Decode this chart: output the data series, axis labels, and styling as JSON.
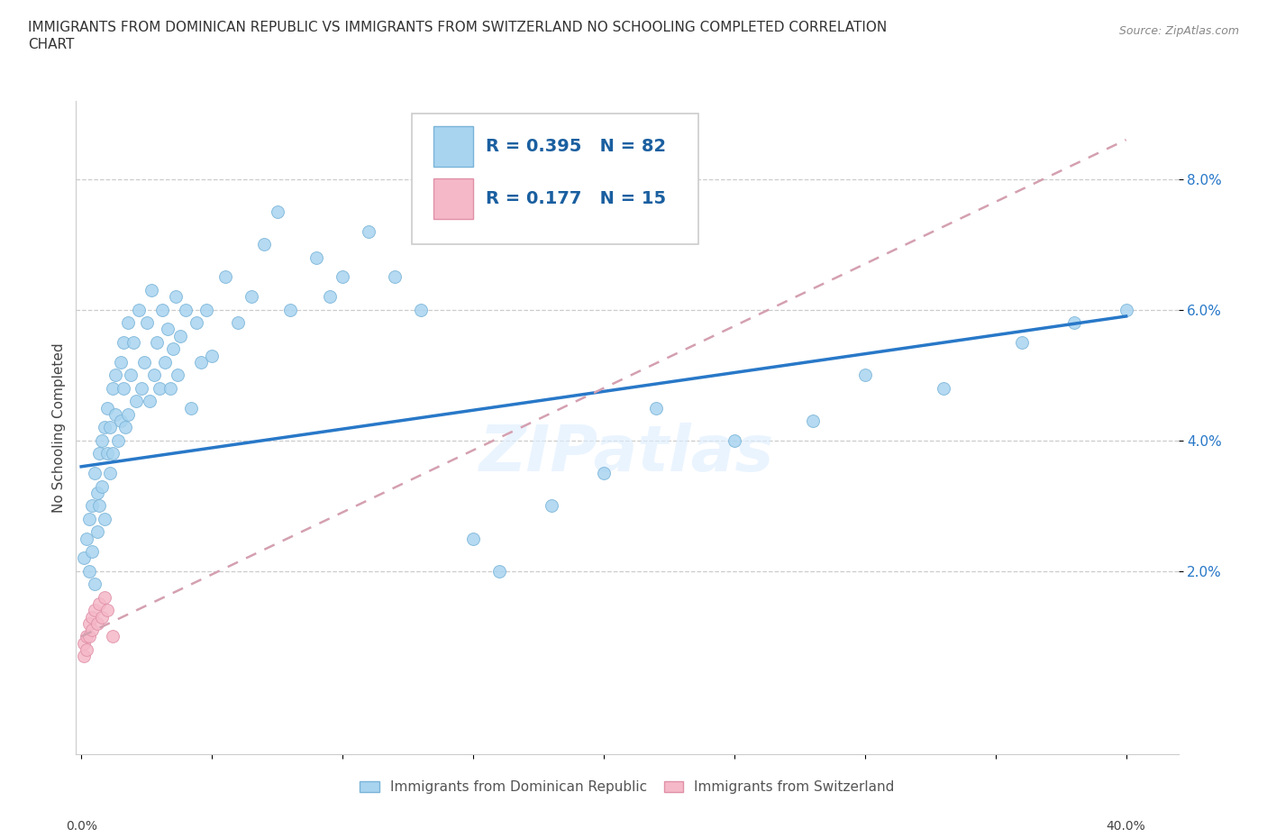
{
  "title_line1": "IMMIGRANTS FROM DOMINICAN REPUBLIC VS IMMIGRANTS FROM SWITZERLAND NO SCHOOLING COMPLETED CORRELATION",
  "title_line2": "CHART",
  "source": "Source: ZipAtlas.com",
  "ylabel": "No Schooling Completed",
  "yticks": [
    "2.0%",
    "4.0%",
    "6.0%",
    "8.0%"
  ],
  "ytick_vals": [
    0.02,
    0.04,
    0.06,
    0.08
  ],
  "xlim": [
    -0.002,
    0.42
  ],
  "ylim": [
    -0.008,
    0.092
  ],
  "legend_blue_R": "0.395",
  "legend_blue_N": "82",
  "legend_pink_R": "0.177",
  "legend_pink_N": "15",
  "legend_label_blue": "Immigrants from Dominican Republic",
  "legend_label_pink": "Immigrants from Switzerland",
  "blue_color": "#a8d4f0",
  "blue_edge": "#7ab4d8",
  "pink_color": "#f5b8c8",
  "pink_edge": "#e090a8",
  "blue_scatter_x": [
    0.001,
    0.002,
    0.003,
    0.003,
    0.004,
    0.004,
    0.005,
    0.005,
    0.006,
    0.006,
    0.007,
    0.007,
    0.008,
    0.008,
    0.009,
    0.009,
    0.01,
    0.01,
    0.011,
    0.011,
    0.012,
    0.012,
    0.013,
    0.013,
    0.014,
    0.015,
    0.015,
    0.016,
    0.016,
    0.017,
    0.018,
    0.018,
    0.019,
    0.02,
    0.021,
    0.022,
    0.023,
    0.024,
    0.025,
    0.026,
    0.027,
    0.028,
    0.029,
    0.03,
    0.031,
    0.032,
    0.033,
    0.034,
    0.035,
    0.036,
    0.037,
    0.038,
    0.04,
    0.042,
    0.044,
    0.046,
    0.048,
    0.05,
    0.055,
    0.06,
    0.065,
    0.07,
    0.075,
    0.08,
    0.09,
    0.095,
    0.1,
    0.11,
    0.12,
    0.13,
    0.15,
    0.16,
    0.18,
    0.2,
    0.22,
    0.25,
    0.28,
    0.3,
    0.33,
    0.36,
    0.38,
    0.4
  ],
  "blue_scatter_y": [
    0.022,
    0.025,
    0.028,
    0.02,
    0.03,
    0.023,
    0.035,
    0.018,
    0.032,
    0.026,
    0.038,
    0.03,
    0.04,
    0.033,
    0.042,
    0.028,
    0.038,
    0.045,
    0.035,
    0.042,
    0.048,
    0.038,
    0.044,
    0.05,
    0.04,
    0.052,
    0.043,
    0.048,
    0.055,
    0.042,
    0.058,
    0.044,
    0.05,
    0.055,
    0.046,
    0.06,
    0.048,
    0.052,
    0.058,
    0.046,
    0.063,
    0.05,
    0.055,
    0.048,
    0.06,
    0.052,
    0.057,
    0.048,
    0.054,
    0.062,
    0.05,
    0.056,
    0.06,
    0.045,
    0.058,
    0.052,
    0.06,
    0.053,
    0.065,
    0.058,
    0.062,
    0.07,
    0.075,
    0.06,
    0.068,
    0.062,
    0.065,
    0.072,
    0.065,
    0.06,
    0.025,
    0.02,
    0.03,
    0.035,
    0.045,
    0.04,
    0.043,
    0.05,
    0.048,
    0.055,
    0.058,
    0.06
  ],
  "pink_scatter_x": [
    0.001,
    0.001,
    0.002,
    0.002,
    0.003,
    0.003,
    0.004,
    0.004,
    0.005,
    0.006,
    0.007,
    0.008,
    0.009,
    0.01,
    0.012
  ],
  "pink_scatter_y": [
    0.009,
    0.007,
    0.01,
    0.008,
    0.012,
    0.01,
    0.013,
    0.011,
    0.014,
    0.012,
    0.015,
    0.013,
    0.016,
    0.014,
    0.01
  ],
  "blue_trend_x": [
    0.0,
    0.4
  ],
  "blue_trend_y": [
    0.036,
    0.059
  ],
  "pink_trend_x": [
    0.0,
    0.4
  ],
  "pink_trend_y": [
    0.01,
    0.086
  ],
  "watermark": "ZIPatlas",
  "bg_color": "#ffffff"
}
